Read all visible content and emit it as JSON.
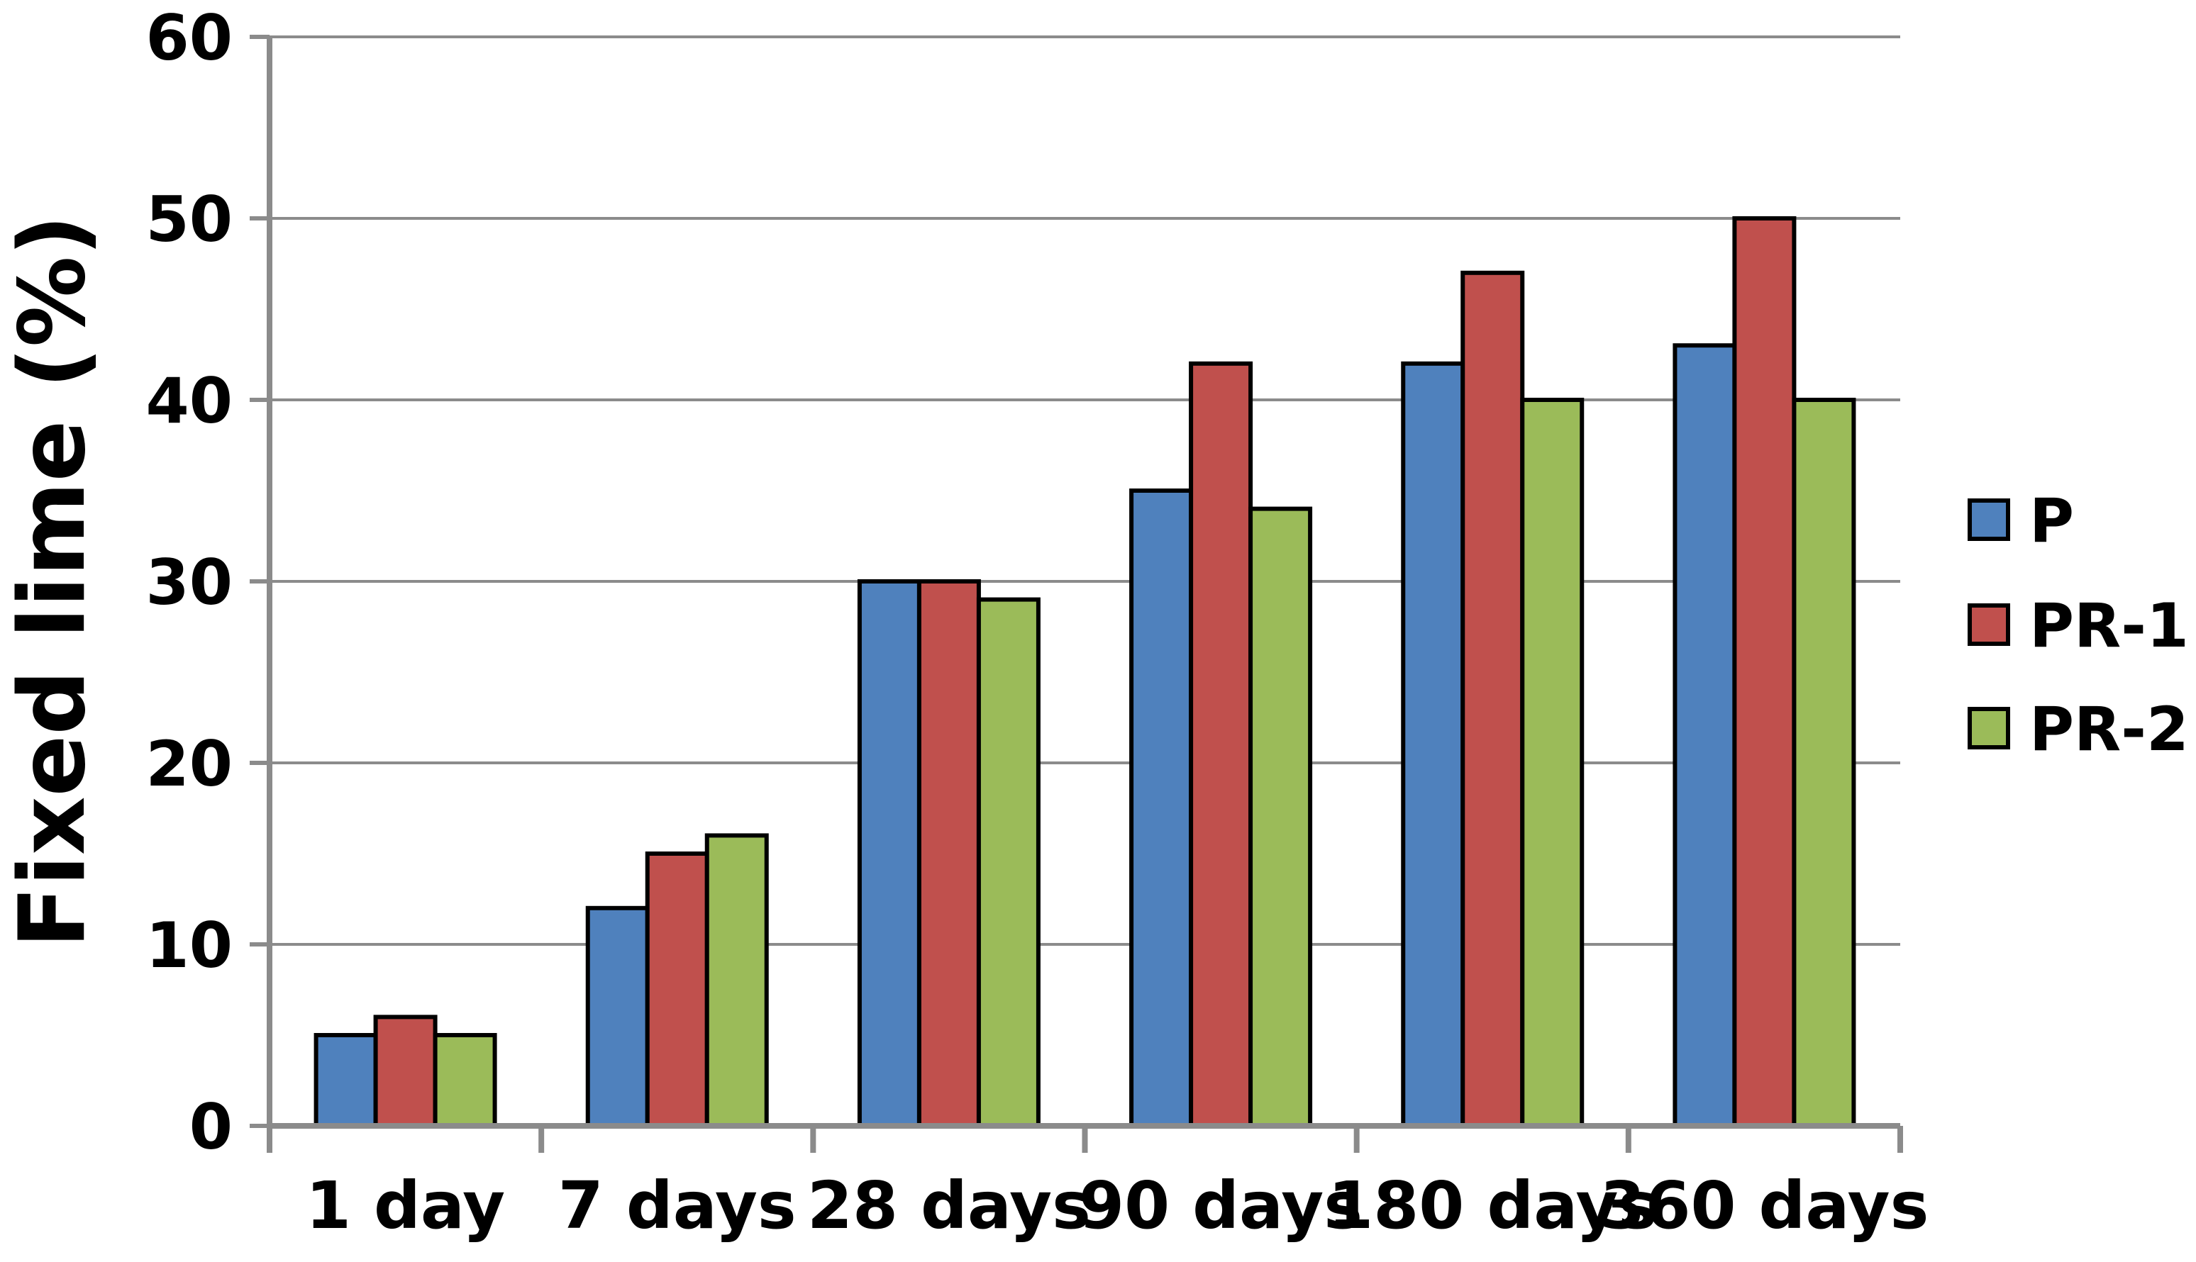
{
  "chart_data": {
    "type": "bar",
    "title": "",
    "xlabel": "",
    "ylabel": "Fixed lime (%)",
    "ylim": [
      0,
      60
    ],
    "yticks": [
      0,
      10,
      20,
      30,
      40,
      50,
      60
    ],
    "grid": true,
    "legend_position": "right",
    "categories": [
      "1 day",
      "7 days",
      "28 days",
      "90 days",
      "180 days",
      "360 days"
    ],
    "series": [
      {
        "name": "P",
        "color": "#4F81BD",
        "values": [
          5,
          12,
          30,
          35,
          42,
          43
        ]
      },
      {
        "name": "PR-1",
        "color": "#C0504D",
        "values": [
          6,
          15,
          30,
          42,
          47,
          50
        ]
      },
      {
        "name": "PR-2",
        "color": "#9BBB59",
        "values": [
          5,
          16,
          29,
          34,
          40,
          40
        ]
      }
    ],
    "colors": {
      "bar_outline": "#000000",
      "gridline": "#8B8B8B",
      "axis": "#8B8B8B",
      "text": "#000000",
      "background": "#FFFFFF"
    }
  }
}
